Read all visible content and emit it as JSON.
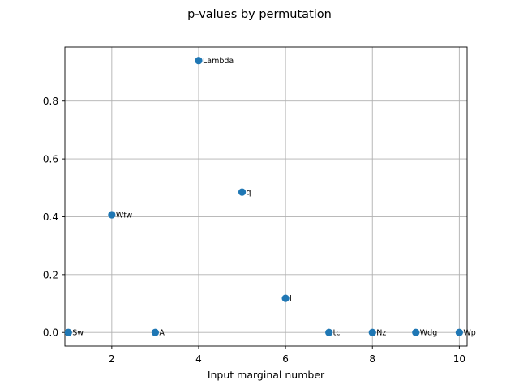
{
  "chart_data": {
    "type": "scatter",
    "title": "p-values by permutation",
    "xlabel": "Input marginal number",
    "ylabel": "",
    "xlim": [
      0.92,
      10.18
    ],
    "ylim": [
      -0.047,
      0.987
    ],
    "xticks": [
      2,
      4,
      6,
      8,
      10
    ],
    "yticks": [
      0.0,
      0.2,
      0.4,
      0.6,
      0.8
    ],
    "xtick_labels": [
      "2",
      "4",
      "6",
      "8",
      "10"
    ],
    "ytick_labels": [
      "0.0",
      "0.2",
      "0.4",
      "0.6",
      "0.8"
    ],
    "grid": true,
    "marker_color": "#1f77b4",
    "points": [
      {
        "x": 1,
        "y": 0.0,
        "label": "Sw"
      },
      {
        "x": 2,
        "y": 0.407,
        "label": "Wfw"
      },
      {
        "x": 3,
        "y": 0.0,
        "label": "A"
      },
      {
        "x": 4,
        "y": 0.94,
        "label": "Lambda"
      },
      {
        "x": 5,
        "y": 0.485,
        "label": "q"
      },
      {
        "x": 6,
        "y": 0.118,
        "label": "l"
      },
      {
        "x": 7,
        "y": 0.0,
        "label": "tc"
      },
      {
        "x": 8,
        "y": 0.0,
        "label": "Nz"
      },
      {
        "x": 9,
        "y": 0.0,
        "label": "Wdg"
      },
      {
        "x": 10,
        "y": 0.0,
        "label": "Wp"
      }
    ]
  }
}
